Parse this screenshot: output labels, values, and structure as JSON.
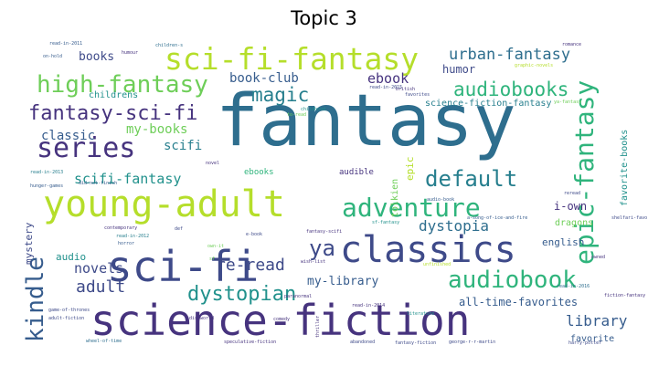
{
  "title": "Topic 3",
  "colors": {
    "purple": "#46337e",
    "indigo": "#3e4a89",
    "blue": "#365c8d",
    "teal": "#2e6e8e",
    "cyan": "#277f8e",
    "sea": "#21918c",
    "green": "#2fb47c",
    "lime": "#6ece58",
    "yellow": "#b5de2b",
    "dark": "#440154"
  },
  "words": {
    "fantasy": "fantasy",
    "science_fiction": "science-fiction",
    "sci_fi": "sci-fi",
    "young_adult": "young-adult",
    "classics": "classics",
    "sci_fi_fantasy": "sci-fi-fantasy",
    "series": "series",
    "high_fantasy": "high-fantasy",
    "epic_fantasy": "epic-fantasy",
    "adventure": "adventure",
    "kindle": "kindle",
    "audiobooks": "audiobooks",
    "audiobook": "audiobook",
    "default": "default",
    "fantasy_sci_fi": "fantasy-sci-fi",
    "magic": "magic",
    "ya": "ya",
    "dystopian": "dystopian",
    "urban_fantasy": "urban-fantasy",
    "dystopia": "dystopia",
    "adult": "adult",
    "re_read": "re-read",
    "library": "library",
    "scifi_fantasy": "scifi-fantasy",
    "ebook": "ebook",
    "novels": "novels",
    "classic": "classic",
    "scifi": "scifi",
    "my_books": "my-books",
    "book_club": "book-club",
    "books": "books",
    "humor": "humor",
    "audio": "audio",
    "my_library": "my-library",
    "all_time_favorites": "all-time-favorites",
    "i_own": "i-own",
    "english": "english",
    "dragons": "dragons",
    "epic": "epic",
    "science_fiction_fantasy": "science-fiction-fantasy",
    "favorite_books": "favorite-books",
    "mystery": "mystery",
    "tolkien": "tolkien",
    "favorite": "favorite",
    "childrens": "childrens",
    "audible": "audible",
    "ebooks": "ebooks",
    "read_in_2011": "read-in-2011",
    "on_hold": "on-hold",
    "humour": "humour",
    "childrens_s": "children-s",
    "romance": "romance",
    "graphic_novels": "graphic-novels",
    "british": "british",
    "read_in_2015": "read-in-2015",
    "read_in_2013": "read-in-2013",
    "read_in_2012": "read-in-2012",
    "read_in_2014": "read-in-2014",
    "read_in_2016": "read-in-2016",
    "hunger_games": "hunger-games",
    "did_not_finish": "did-not-finish",
    "contemporary": "contemporary",
    "horror": "horror",
    "paranormal": "paranormal",
    "wish_list": "wish-list",
    "game_of_thrones": "game-of-thrones",
    "adult_fiction": "adult-fiction",
    "discworld": "discworld",
    "comedy": "comedy",
    "thriller": "thriller",
    "literature": "literature",
    "speculative_fiction": "speculative-fiction",
    "abandoned": "abandoned",
    "fantasy_fiction": "fantasy-fiction",
    "george_r_r_martin": "george-r-r-martin",
    "harry_potter": "harry-potter",
    "wheel_of_time": "wheel-of-time",
    "sf_fantasy": "sf-fantasy",
    "shelfari_favorites": "shelfari-favorites",
    "fiction_fantasy": "fiction-fantasy",
    "asoiaf": "a-song-of-ice-and-fire",
    "audio_book": "audio-book",
    "reread": "reread",
    "unfinished": "unfinished",
    "owned": "owned",
    "e_book": "e-book",
    "own_it": "own-it",
    "sf": "sf",
    "def": "def",
    "fantasy_scifi": "fantasy-scifi",
    "childhood": "childhood",
    "to_read": "to-read",
    "favorites": "favorites",
    "novel": "novel",
    "ya_fantasy": "ya-fantasy"
  }
}
